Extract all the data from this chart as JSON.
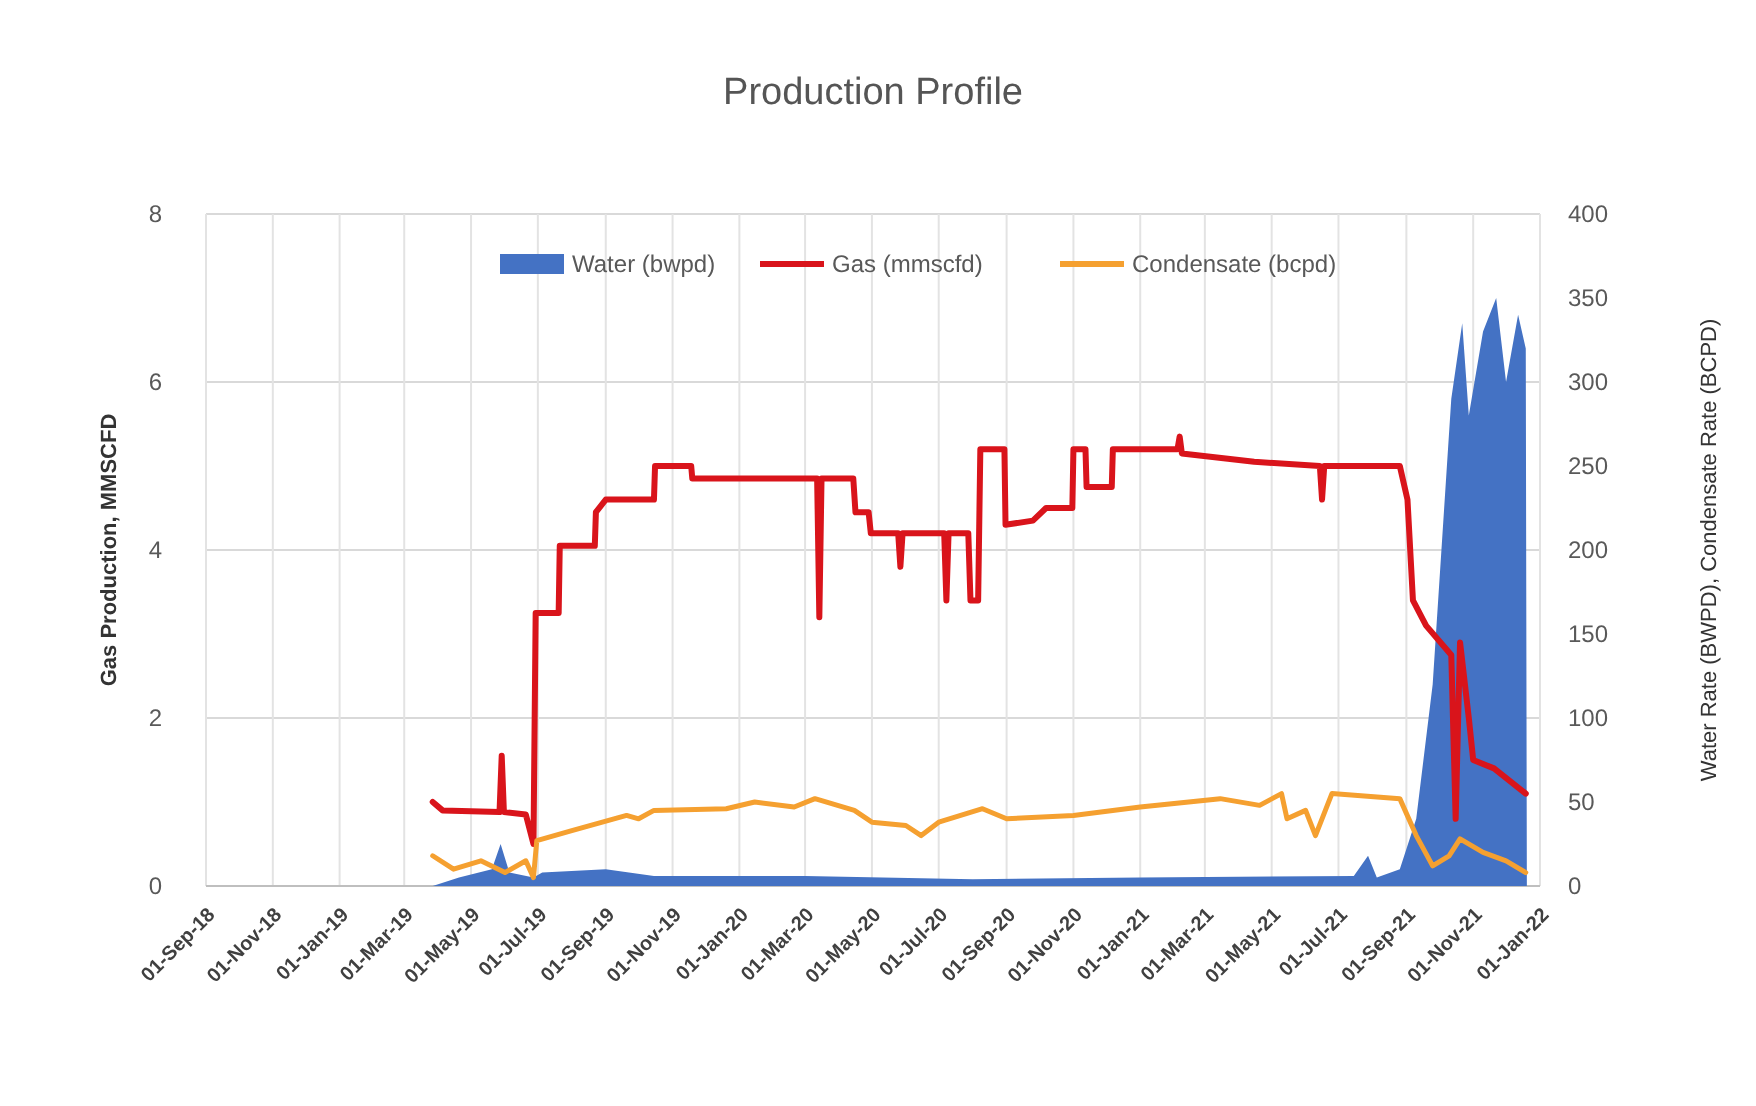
{
  "chart_data": {
    "type": "line",
    "title": "Production Profile",
    "ylabel": "Gas Production, MMSCFD",
    "y2label": "Water Rate (BWPD), Condensate Rate (BCPD)",
    "xlim": [
      "2018-09-01",
      "2022-01-01"
    ],
    "xticks": [
      {
        "value": "2018-09-01",
        "label": "01-Sep-18"
      },
      {
        "value": "2018-11-01",
        "label": "01-Nov-18"
      },
      {
        "value": "2019-01-01",
        "label": "01-Jan-19"
      },
      {
        "value": "2019-03-01",
        "label": "01-Mar-19"
      },
      {
        "value": "2019-05-01",
        "label": "01-May-19"
      },
      {
        "value": "2019-07-01",
        "label": "01-Jul-19"
      },
      {
        "value": "2019-09-01",
        "label": "01-Sep-19"
      },
      {
        "value": "2019-11-01",
        "label": "01-Nov-19"
      },
      {
        "value": "2020-01-01",
        "label": "01-Jan-20"
      },
      {
        "value": "2020-03-01",
        "label": "01-Mar-20"
      },
      {
        "value": "2020-05-01",
        "label": "01-May-20"
      },
      {
        "value": "2020-07-01",
        "label": "01-Jul-20"
      },
      {
        "value": "2020-09-01",
        "label": "01-Sep-20"
      },
      {
        "value": "2020-11-01",
        "label": "01-Nov-20"
      },
      {
        "value": "2021-01-01",
        "label": "01-Jan-21"
      },
      {
        "value": "2021-03-01",
        "label": "01-Mar-21"
      },
      {
        "value": "2021-05-01",
        "label": "01-May-21"
      },
      {
        "value": "2021-07-01",
        "label": "01-Jul-21"
      },
      {
        "value": "2021-09-01",
        "label": "01-Sep-21"
      },
      {
        "value": "2021-11-01",
        "label": "01-Nov-21"
      },
      {
        "value": "2022-01-01",
        "label": "01-Jan-22"
      }
    ],
    "ylim": [
      0,
      8
    ],
    "yticks": [
      0,
      2,
      4,
      6,
      8
    ],
    "y2lim": [
      0,
      400
    ],
    "y2ticks": [
      0,
      50,
      100,
      150,
      200,
      250,
      300,
      350,
      400
    ],
    "grid": true,
    "legend": "top",
    "line_style": "solid",
    "marker": "none",
    "series": [
      {
        "name": "Water (bwpd)",
        "type": "area",
        "axis": "y2",
        "color": "#4472c4",
        "x": [
          "2019-03-27",
          "2019-04-20",
          "2019-05-20",
          "2019-05-28",
          "2019-06-05",
          "2019-06-27",
          "2019-07-05",
          "2019-09-01",
          "2019-10-15",
          "2020-03-01",
          "2020-08-01",
          "2021-01-01",
          "2021-07-15",
          "2021-07-28",
          "2021-08-05",
          "2021-08-26",
          "2021-09-10",
          "2021-09-25",
          "2021-10-07",
          "2021-10-12",
          "2021-10-22",
          "2021-10-28",
          "2021-11-10",
          "2021-11-22",
          "2021-12-01",
          "2021-12-12",
          "2021-12-19",
          "2021-12-20"
        ],
        "values": [
          0,
          5,
          10,
          25,
          8,
          5,
          8,
          10,
          6,
          6,
          4,
          5,
          6,
          18,
          5,
          10,
          40,
          120,
          240,
          290,
          335,
          280,
          330,
          350,
          300,
          340,
          320,
          0
        ]
      },
      {
        "name": "Gas (mmscfd)",
        "color": "#d9141b",
        "x": [
          "2019-03-27",
          "2019-04-05",
          "2019-05-27",
          "2019-05-29",
          "2019-05-31",
          "2019-06-20",
          "2019-06-27",
          "2019-06-29",
          "2019-07-20",
          "2019-07-21",
          "2019-08-22",
          "2019-08-23",
          "2019-09-01",
          "2019-10-15",
          "2019-10-16",
          "2019-11-18",
          "2019-11-19",
          "2020-03-12",
          "2020-03-14",
          "2020-03-16",
          "2020-04-14",
          "2020-04-16",
          "2020-04-28",
          "2020-04-30",
          "2020-05-25",
          "2020-05-27",
          "2020-05-29",
          "2020-07-06",
          "2020-07-08",
          "2020-07-10",
          "2020-07-28",
          "2020-07-30",
          "2020-08-06",
          "2020-08-08",
          "2020-08-30",
          "2020-08-31",
          "2020-09-25",
          "2020-10-07",
          "2020-10-31",
          "2020-11-01",
          "2020-11-12",
          "2020-11-13",
          "2020-12-06",
          "2020-12-07",
          "2021-02-04",
          "2021-02-06",
          "2021-02-08",
          "2021-04-15",
          "2021-06-14",
          "2021-06-16",
          "2021-06-18",
          "2021-08-26",
          "2021-09-02",
          "2021-09-07",
          "2021-09-19",
          "2021-10-12",
          "2021-10-16",
          "2021-10-20",
          "2021-10-28",
          "2021-11-01",
          "2021-11-20",
          "2021-12-19"
        ],
        "values": [
          1.0,
          0.9,
          0.88,
          1.55,
          0.88,
          0.85,
          0.5,
          3.25,
          3.25,
          4.05,
          4.05,
          4.45,
          4.6,
          4.6,
          5.0,
          5.0,
          4.85,
          4.85,
          3.2,
          4.85,
          4.85,
          4.45,
          4.45,
          4.2,
          4.2,
          3.8,
          4.2,
          4.2,
          3.4,
          4.2,
          4.2,
          3.4,
          3.4,
          5.2,
          5.2,
          4.3,
          4.35,
          4.5,
          4.5,
          5.2,
          5.2,
          4.75,
          4.75,
          5.2,
          5.2,
          5.35,
          5.15,
          5.05,
          5.0,
          4.6,
          5.0,
          5.0,
          4.6,
          3.4,
          3.1,
          2.75,
          0.8,
          2.9,
          2.0,
          1.5,
          1.4,
          1.1
        ]
      },
      {
        "name": "Condensate (bcpd)",
        "type": "line",
        "axis": "y2",
        "color": "#f5a030",
        "x": [
          "2019-03-27",
          "2019-04-15",
          "2019-05-10",
          "2019-06-01",
          "2019-06-20",
          "2019-06-27",
          "2019-06-30",
          "2019-08-01",
          "2019-09-20",
          "2019-10-01",
          "2019-10-15",
          "2019-12-20",
          "2020-01-15",
          "2020-02-20",
          "2020-03-10",
          "2020-04-15",
          "2020-05-01",
          "2020-06-01",
          "2020-06-15",
          "2020-07-01",
          "2020-08-10",
          "2020-09-01",
          "2020-11-01",
          "2021-01-01",
          "2021-03-15",
          "2021-04-20",
          "2021-05-10",
          "2021-05-15",
          "2021-06-01",
          "2021-06-10",
          "2021-06-25",
          "2021-08-26",
          "2021-09-10",
          "2021-09-25",
          "2021-10-10",
          "2021-10-20",
          "2021-11-10",
          "2021-12-01",
          "2021-12-19"
        ],
        "values": [
          18,
          10,
          15,
          8,
          15,
          5,
          27,
          33,
          42,
          40,
          45,
          46,
          50,
          47,
          52,
          45,
          38,
          36,
          30,
          38,
          46,
          40,
          42,
          47,
          52,
          48,
          55,
          40,
          45,
          30,
          55,
          52,
          30,
          12,
          18,
          28,
          20,
          15,
          8
        ]
      }
    ]
  }
}
